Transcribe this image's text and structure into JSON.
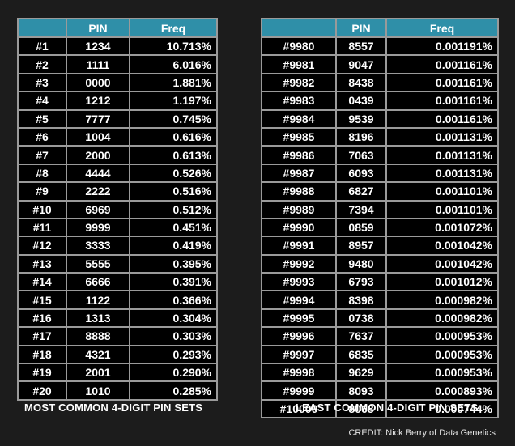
{
  "chart_data": [
    {
      "type": "table",
      "title": "MOST COMMON 4-DIGIT PIN SETS",
      "columns": [
        "",
        "PIN",
        "Freq"
      ],
      "rows": [
        [
          "#1",
          "1234",
          "10.713%"
        ],
        [
          "#2",
          "1111",
          "6.016%"
        ],
        [
          "#3",
          "0000",
          "1.881%"
        ],
        [
          "#4",
          "1212",
          "1.197%"
        ],
        [
          "#5",
          "7777",
          "0.745%"
        ],
        [
          "#6",
          "1004",
          "0.616%"
        ],
        [
          "#7",
          "2000",
          "0.613%"
        ],
        [
          "#8",
          "4444",
          "0.526%"
        ],
        [
          "#9",
          "2222",
          "0.516%"
        ],
        [
          "#10",
          "6969",
          "0.512%"
        ],
        [
          "#11",
          "9999",
          "0.451%"
        ],
        [
          "#12",
          "3333",
          "0.419%"
        ],
        [
          "#13",
          "5555",
          "0.395%"
        ],
        [
          "#14",
          "6666",
          "0.391%"
        ],
        [
          "#15",
          "1122",
          "0.366%"
        ],
        [
          "#16",
          "1313",
          "0.304%"
        ],
        [
          "#17",
          "8888",
          "0.303%"
        ],
        [
          "#18",
          "4321",
          "0.293%"
        ],
        [
          "#19",
          "2001",
          "0.290%"
        ],
        [
          "#20",
          "1010",
          "0.285%"
        ]
      ]
    },
    {
      "type": "table",
      "title": "LEAST COMMON 4-DIGIT PIN SETS",
      "columns": [
        "",
        "PIN",
        "Freq"
      ],
      "rows": [
        [
          "#9980",
          "8557",
          "0.001191%"
        ],
        [
          "#9981",
          "9047",
          "0.001161%"
        ],
        [
          "#9982",
          "8438",
          "0.001161%"
        ],
        [
          "#9983",
          "0439",
          "0.001161%"
        ],
        [
          "#9984",
          "9539",
          "0.001161%"
        ],
        [
          "#9985",
          "8196",
          "0.001131%"
        ],
        [
          "#9986",
          "7063",
          "0.001131%"
        ],
        [
          "#9987",
          "6093",
          "0.001131%"
        ],
        [
          "#9988",
          "6827",
          "0.001101%"
        ],
        [
          "#9989",
          "7394",
          "0.001101%"
        ],
        [
          "#9990",
          "0859",
          "0.001072%"
        ],
        [
          "#9991",
          "8957",
          "0.001042%"
        ],
        [
          "#9992",
          "9480",
          "0.001042%"
        ],
        [
          "#9993",
          "6793",
          "0.001012%"
        ],
        [
          "#9994",
          "8398",
          "0.000982%"
        ],
        [
          "#9995",
          "0738",
          "0.000982%"
        ],
        [
          "#9996",
          "7637",
          "0.000953%"
        ],
        [
          "#9997",
          "6835",
          "0.000953%"
        ],
        [
          "#9998",
          "9629",
          "0.000953%"
        ],
        [
          "#9999",
          "8093",
          "0.000893%"
        ],
        [
          "#10000",
          "8068",
          "0.000744%"
        ]
      ]
    }
  ],
  "credit": "CREDIT: Nick Berry of Data Genetics",
  "colors": {
    "header_bg": "#2f8fa8",
    "cell_bg": "#000000",
    "grid": "#9a9a9a",
    "page_bg": "#1c1c1c"
  }
}
